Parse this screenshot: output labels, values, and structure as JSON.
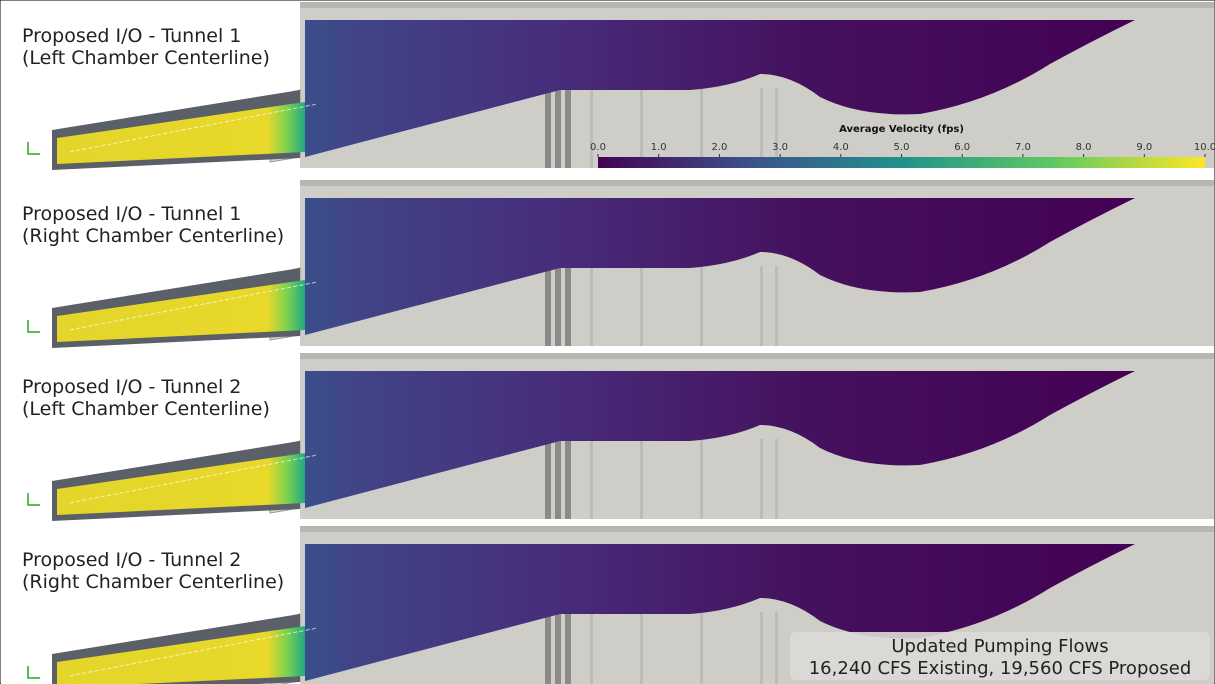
{
  "panels": [
    {
      "title": [
        "Proposed I/O - Tunnel 1",
        "(Left Chamber Centerline)"
      ]
    },
    {
      "title": [
        "Proposed I/O - Tunnel 1",
        "(Right Chamber Centerline)"
      ]
    },
    {
      "title": [
        "Proposed I/O - Tunnel 2",
        "(Left Chamber Centerline)"
      ]
    },
    {
      "title": [
        "Proposed I/O - Tunnel 2",
        "(Right Chamber Centerline)"
      ]
    }
  ],
  "colorbar": {
    "title": "Average Velocity (fps)",
    "range": [
      0,
      10
    ],
    "ticks": [
      {
        "value": 0,
        "label": "0.0"
      },
      {
        "value": 1,
        "label": "1.0"
      },
      {
        "value": 2,
        "label": "2.0"
      },
      {
        "value": 3,
        "label": "3.0"
      },
      {
        "value": 4,
        "label": "4.0"
      },
      {
        "value": 5,
        "label": "5.0"
      },
      {
        "value": 6,
        "label": "6.0"
      },
      {
        "value": 7,
        "label": "7.0"
      },
      {
        "value": 8,
        "label": "8.0"
      },
      {
        "value": 9,
        "label": "9.0"
      },
      {
        "value": 10,
        "label": "10.0"
      }
    ]
  },
  "note": [
    "Updated Pumping Flows",
    "16,240 CFS Existing, 19,560 CFS Proposed"
  ]
}
